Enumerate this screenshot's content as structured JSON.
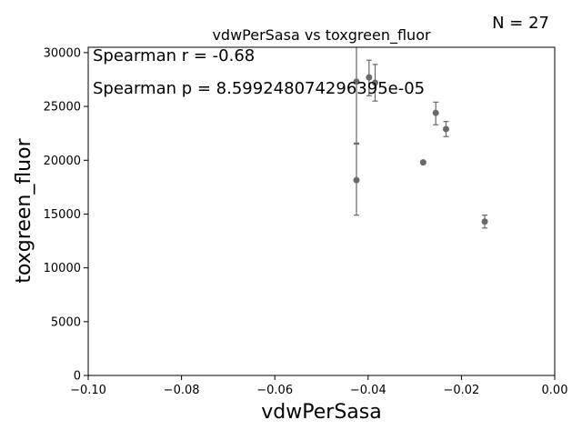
{
  "chart_data": {
    "type": "scatter",
    "title": "vdwPerSasa vs toxgreen_fluor",
    "xlabel": "vdwPerSasa",
    "ylabel": "toxgreen_fluor",
    "xlim": [
      -0.1,
      0.0
    ],
    "ylim": [
      0,
      30500
    ],
    "x_ticks": [
      -0.1,
      -0.08,
      -0.06,
      -0.04,
      -0.02,
      0.0
    ],
    "x_tick_labels": [
      "−0.10",
      "−0.08",
      "−0.06",
      "−0.04",
      "−0.02",
      "0.00"
    ],
    "y_ticks": [
      0,
      5000,
      10000,
      15000,
      20000,
      25000,
      30000
    ],
    "y_tick_labels": [
      "0",
      "5000",
      "10000",
      "15000",
      "20000",
      "25000",
      "30000"
    ],
    "grid": false,
    "point_color": "#696969",
    "points": [
      {
        "x": -0.0425,
        "y": 18150,
        "err_low": 14900,
        "err_high": 21500
      },
      {
        "x": -0.0425,
        "y": 27300,
        "err_low": 21600,
        "err_high": 32500
      },
      {
        "x": -0.0398,
        "y": 27700,
        "err_low": 26000,
        "err_high": 29300
      },
      {
        "x": -0.0385,
        "y": 27200,
        "err_low": 25500,
        "err_high": 28900
      },
      {
        "x": -0.0282,
        "y": 19800,
        "err_low": 19800,
        "err_high": 19800
      },
      {
        "x": -0.0255,
        "y": 24400,
        "err_low": 23300,
        "err_high": 25400
      },
      {
        "x": -0.0233,
        "y": 22900,
        "err_low": 22200,
        "err_high": 23600
      },
      {
        "x": -0.015,
        "y": 14300,
        "err_low": 13700,
        "err_high": 14900
      }
    ],
    "annotations": {
      "n_label": "N = 27",
      "spearman_r": "Spearman r = -0.68",
      "spearman_p": "Spearman p = 8.599248074296395e-05"
    }
  }
}
